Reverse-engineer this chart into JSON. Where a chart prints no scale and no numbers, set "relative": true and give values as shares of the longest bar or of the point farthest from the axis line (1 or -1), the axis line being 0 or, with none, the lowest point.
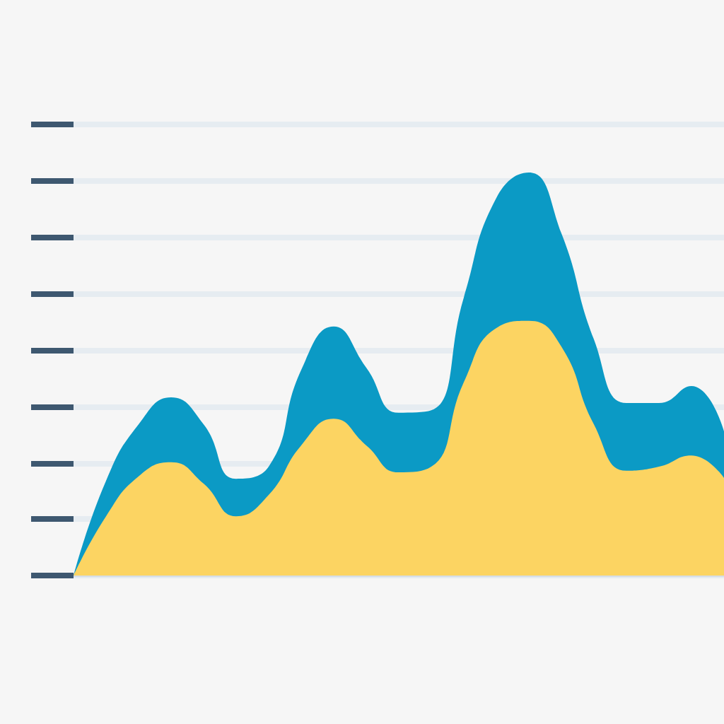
{
  "chart_data": {
    "type": "area",
    "relative": true,
    "grid": true,
    "marker": "none",
    "categories": [
      null,
      null,
      null,
      null,
      null,
      null,
      null,
      null,
      null,
      null,
      null,
      null,
      null,
      null,
      null,
      null,
      null,
      null,
      null,
      null,
      null
    ],
    "series": [
      {
        "color": "#0b9ac5",
        "values": [
          0,
          0.235,
          0.375,
          0.442,
          0.375,
          0.24,
          0.27,
          0.51,
          0.618,
          0.516,
          0.404,
          0.41,
          0.69,
          0.937,
          1,
          0.849,
          0.586,
          0.428,
          0.428,
          0.47,
          0.358
        ]
      },
      {
        "color": "#fcd462",
        "values": [
          0,
          0.147,
          0.246,
          0.281,
          0.228,
          0.147,
          0.2,
          0.323,
          0.389,
          0.323,
          0.256,
          0.27,
          0.48,
          0.614,
          0.632,
          0.568,
          0.375,
          0.26,
          0.27,
          0.298,
          0.242
        ]
      }
    ]
  }
}
